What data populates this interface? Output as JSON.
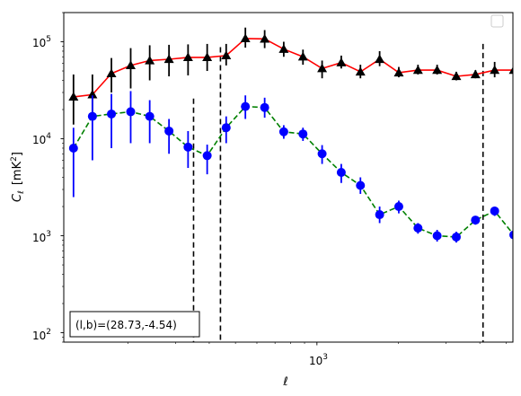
{
  "chart_data": {
    "type": "line",
    "xscale": "log",
    "yscale": "log",
    "xlim": [
      116,
      5300
    ],
    "ylim": [
      80,
      200000
    ],
    "xlabel": "ℓ",
    "ylabel_main": "C",
    "ylabel_sub": "ℓ",
    "ylabel_unit": "[mK",
    "ylabel_unit_sup": "2",
    "ylabel_unit_end": "]",
    "x_tick_labels": [
      {
        "value": 1000,
        "base": "10",
        "exp": "3"
      }
    ],
    "y_tick_labels": [
      {
        "value": 100,
        "base": "10",
        "exp": "2"
      },
      {
        "value": 1000,
        "base": "10",
        "exp": "3"
      },
      {
        "value": 10000,
        "base": "10",
        "exp": "4"
      },
      {
        "value": 100000,
        "base": "10",
        "exp": "5"
      }
    ],
    "vlines": [
      {
        "x": 350,
        "y_top": 26000
      },
      {
        "x": 440,
        "y_top": 88000
      },
      {
        "x": 4110,
        "y_top": 95000
      }
    ],
    "annotation": "(l,b)=(28.73,-4.54)",
    "legend": {
      "position": "top-right",
      "entries": []
    },
    "series": [
      {
        "line_color": "#ff0000",
        "marker_color": "#000000",
        "marker": "triangle",
        "linestyle": "solid",
        "x": [
          126,
          148,
          174,
          205,
          241,
          284,
          334,
          393,
          462,
          544,
          641,
          754,
          888,
          1045,
          1230,
          1448,
          1705,
          2007,
          2363,
          2781,
          3274,
          3854,
          4537,
          5341
        ],
        "y": [
          27000,
          28500,
          47000,
          57000,
          64000,
          66000,
          69000,
          69000,
          72000,
          108000,
          107000,
          84000,
          70000,
          53000,
          61000,
          49000,
          66000,
          48000,
          51000,
          51000,
          44000,
          46000,
          51000,
          51000
        ],
        "y_low": [
          14000,
          16000,
          30000,
          33000,
          40000,
          44000,
          45000,
          50000,
          57000,
          87000,
          86000,
          70000,
          58000,
          42000,
          53000,
          42000,
          56000,
          43000,
          46000,
          46000,
          40000,
          42000,
          43000,
          43000
        ],
        "y_high": [
          46000,
          46000,
          68000,
          86000,
          92000,
          93000,
          94000,
          95000,
          95000,
          140000,
          132000,
          100000,
          83000,
          64000,
          72000,
          58000,
          80000,
          55000,
          58000,
          58000,
          49000,
          51000,
          62000,
          62000
        ]
      },
      {
        "line_color": "#008000",
        "marker_color": "#0000ff",
        "marker": "circle",
        "linestyle": "dashed",
        "x": [
          126,
          148,
          174,
          205,
          241,
          284,
          334,
          393,
          462,
          544,
          641,
          754,
          888,
          1045,
          1230,
          1448,
          1705,
          2007,
          2363,
          2781,
          3274,
          3854,
          4537,
          5341
        ],
        "y": [
          8000,
          17000,
          18000,
          19000,
          17000,
          12000,
          8200,
          6700,
          13000,
          21500,
          21000,
          11800,
          11200,
          7000,
          4500,
          3300,
          1650,
          2000,
          1200,
          1000,
          970,
          1450,
          1800,
          1020
        ],
        "y_low": [
          2500,
          6000,
          8000,
          9000,
          9000,
          7000,
          5000,
          4300,
          9000,
          16000,
          16500,
          10000,
          9500,
          5500,
          3500,
          2700,
          1350,
          1700,
          1050,
          870,
          850,
          1300,
          1600,
          880
        ],
        "y_high": [
          13000,
          28000,
          29000,
          31000,
          25000,
          16000,
          12000,
          8700,
          17000,
          28000,
          26500,
          13800,
          13000,
          8600,
          5500,
          4000,
          2000,
          2300,
          1350,
          1150,
          1100,
          1600,
          2000,
          1200
        ]
      }
    ]
  }
}
